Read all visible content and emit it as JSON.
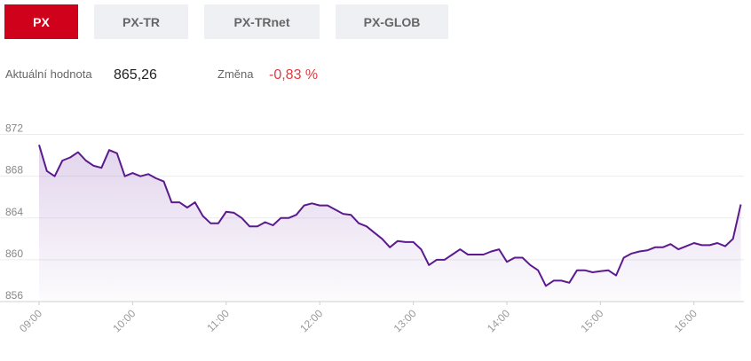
{
  "tabs": [
    "PX",
    "PX-TR",
    "PX-TRnet",
    "PX-GLOB"
  ],
  "active_tab": 0,
  "summary": {
    "current_label": "Aktuální hodnota",
    "current_value": "865,26",
    "change_label": "Změna",
    "change_value": "-0,83 %"
  },
  "chart_data": {
    "type": "line",
    "color": "#5b1a8e",
    "grid": true,
    "x": [
      540,
      545,
      550,
      555,
      560,
      565,
      570,
      575,
      580,
      585,
      590,
      595,
      600,
      605,
      610,
      615,
      620,
      625,
      630,
      635,
      640,
      645,
      650,
      655,
      660,
      665,
      670,
      675,
      680,
      685,
      690,
      695,
      700,
      705,
      710,
      715,
      720,
      725,
      730,
      735,
      740,
      745,
      750,
      755,
      760,
      765,
      770,
      775,
      780,
      785,
      790,
      795,
      800,
      805,
      810,
      815,
      820,
      825,
      830,
      835,
      840,
      845,
      850,
      855,
      860,
      865,
      870,
      875,
      880,
      885,
      890,
      895,
      900,
      905,
      910,
      915,
      920,
      925,
      930,
      935,
      940,
      945,
      950,
      955,
      960,
      965,
      970,
      975,
      980,
      985,
      990
    ],
    "values": [
      871,
      868.5,
      868,
      869.5,
      869.8,
      870.3,
      869.5,
      869,
      868.8,
      870.5,
      870.2,
      868,
      868.3,
      868,
      868.2,
      867.8,
      867.5,
      865.5,
      865.5,
      865,
      865.5,
      864.2,
      863.5,
      863.5,
      864.6,
      864.5,
      864,
      863.2,
      863.2,
      863.6,
      863.3,
      864,
      864,
      864.3,
      865.2,
      865.4,
      865.2,
      865.2,
      864.8,
      864.4,
      864.3,
      863.5,
      863.2,
      862.6,
      862,
      861.2,
      861.8,
      861.7,
      861.7,
      861,
      859.5,
      860,
      860,
      860.5,
      861,
      860.5,
      860.5,
      860.5,
      860.8,
      861,
      859.8,
      860.2,
      860.2,
      859.5,
      859,
      857.5,
      858,
      858,
      857.8,
      859,
      859,
      858.8,
      858.9,
      859,
      858.5,
      860.2,
      860.6,
      860.8,
      860.9,
      861.2,
      861.2,
      861.5,
      861,
      861.3,
      861.6,
      861.4,
      861.4,
      861.6,
      861.3,
      862,
      865.3
    ],
    "xlim": [
      540,
      992
    ],
    "xticks": [
      {
        "value": 540,
        "label": "09:00"
      },
      {
        "value": 600,
        "label": "10:00"
      },
      {
        "value": 660,
        "label": "11:00"
      },
      {
        "value": 720,
        "label": "12:00"
      },
      {
        "value": 780,
        "label": "13:00"
      },
      {
        "value": 840,
        "label": "14:00"
      },
      {
        "value": 900,
        "label": "15:00"
      },
      {
        "value": 960,
        "label": "16:00"
      }
    ],
    "ylim": [
      856,
      874
    ],
    "yticks": [
      856,
      860,
      864,
      868,
      872
    ]
  }
}
